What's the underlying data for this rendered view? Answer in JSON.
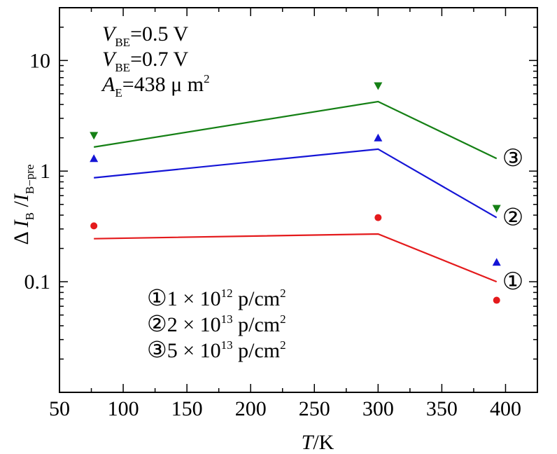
{
  "chart_data": {
    "type": "line",
    "xlabel": "T/K",
    "ylabel": "ΔI_B/I_B-pre",
    "xlim": [
      50,
      425
    ],
    "ylim": [
      0.01,
      30
    ],
    "y_scale": "log",
    "xticks": [
      50,
      100,
      150,
      200,
      250,
      300,
      350,
      400
    ],
    "yticks": [
      0.1,
      1,
      10
    ],
    "ytick_labels": [
      "0.1",
      "1",
      "10"
    ],
    "grid": false,
    "series": [
      {
        "marker_label": "①",
        "color": "#e41a1c",
        "line": {
          "x": [
            77,
            300,
            393
          ],
          "y": [
            0.245,
            0.27,
            0.1
          ]
        },
        "points": {
          "marker": "circle",
          "x": [
            77,
            300,
            393
          ],
          "y": [
            0.32,
            0.38,
            0.068
          ]
        }
      },
      {
        "marker_label": "②",
        "color": "#1515d6",
        "line": {
          "x": [
            77,
            300,
            393
          ],
          "y": [
            0.87,
            1.58,
            0.38
          ]
        },
        "points": {
          "marker": "triangle-up",
          "x": [
            77,
            300,
            393
          ],
          "y": [
            1.3,
            2.0,
            0.15
          ]
        }
      },
      {
        "marker_label": "③",
        "color": "#158015",
        "line": {
          "x": [
            77,
            300,
            393
          ],
          "y": [
            1.65,
            4.25,
            1.3
          ]
        },
        "points": {
          "marker": "triangle-down",
          "x": [
            77,
            300,
            393
          ],
          "y": [
            2.1,
            5.9,
            0.46
          ]
        }
      }
    ],
    "annotations": {
      "conditions": [
        {
          "var": "V",
          "sub": "BE",
          "rest": "=0.5 V"
        },
        {
          "var": "V",
          "sub": "BE",
          "rest": "=0.7 V"
        },
        {
          "var": "A",
          "sub": "E",
          "rest": "=438 μ m",
          "sup": "2"
        }
      ],
      "legend": [
        {
          "circle": "①",
          "text": "1 × 10",
          "exp": "12",
          "unit": " p/cm",
          "unit_sup": "2"
        },
        {
          "circle": "②",
          "text": "2 × 10",
          "exp": "13",
          "unit": " p/cm",
          "unit_sup": "2"
        },
        {
          "circle": "③",
          "text": "5 × 10",
          "exp": "13",
          "unit": " p/cm",
          "unit_sup": "2"
        }
      ]
    }
  }
}
